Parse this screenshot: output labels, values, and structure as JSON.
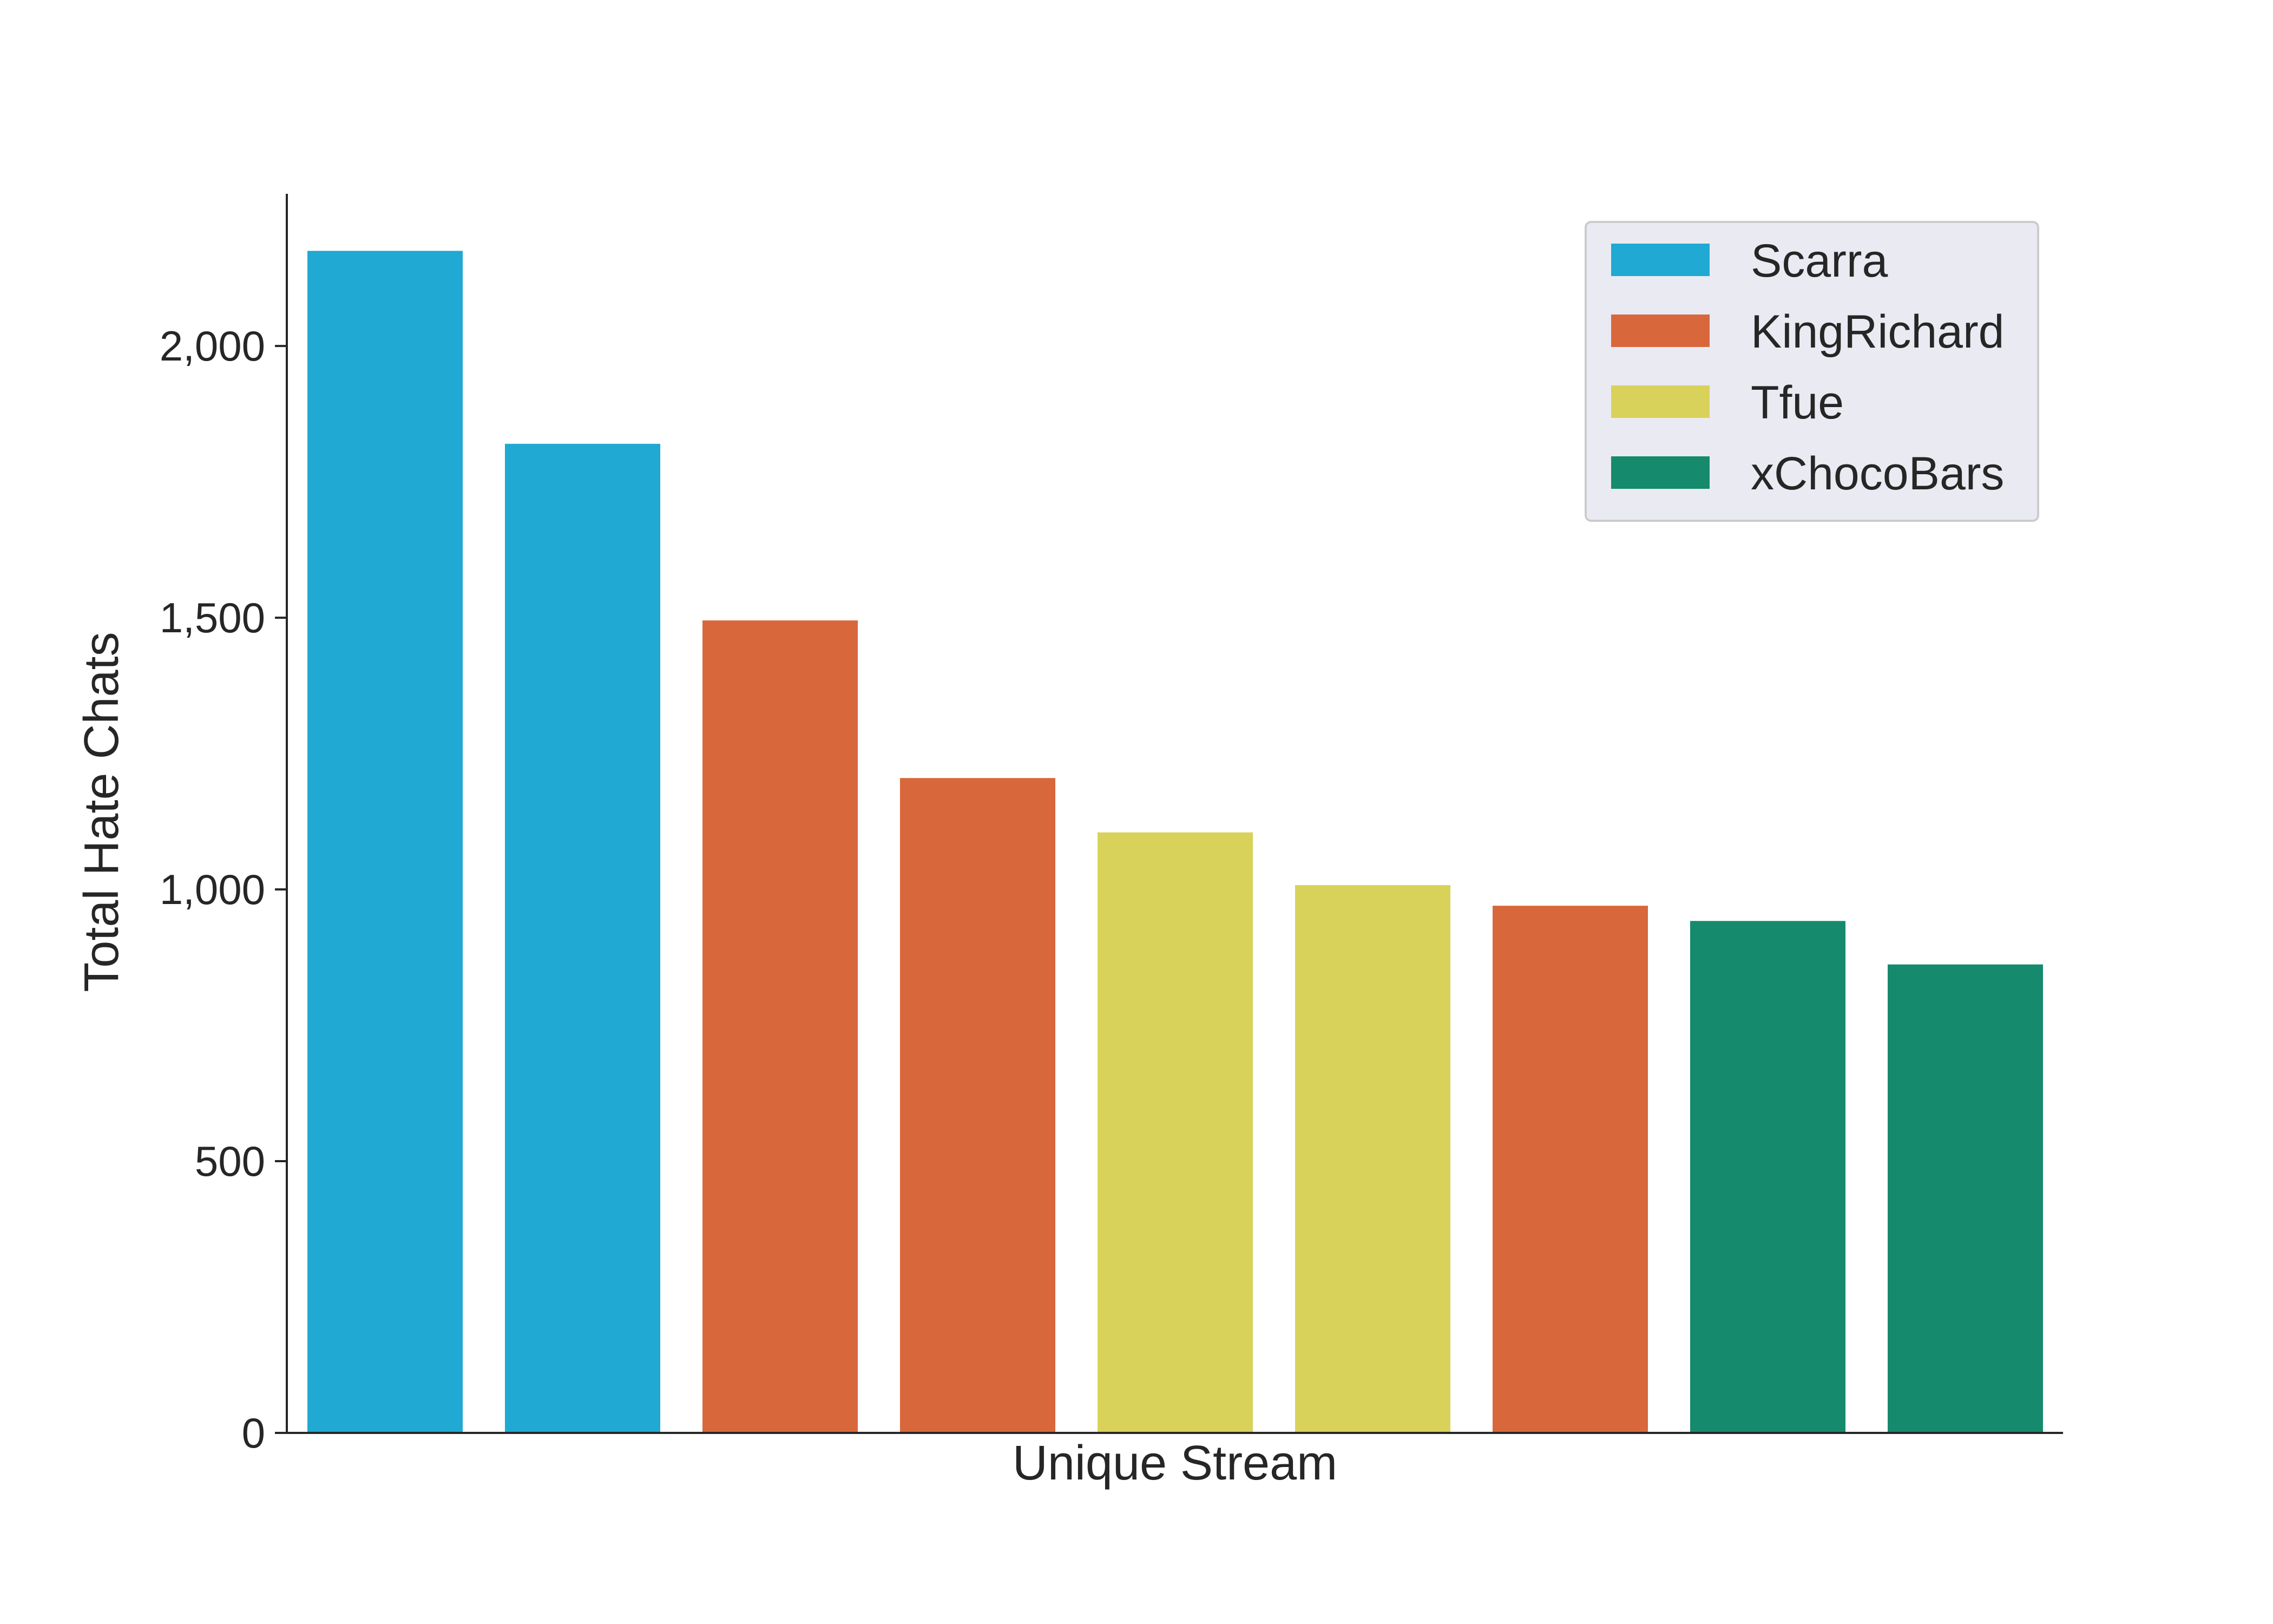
{
  "chart_data": {
    "type": "bar",
    "xlabel": "Unique Stream",
    "ylabel": "Total Hate Chats",
    "ylim": [
      0,
      2280
    ],
    "yticks": [
      0,
      500,
      1000,
      1500,
      2000
    ],
    "ytick_labels": [
      "0",
      "500",
      "1,000",
      "1,500",
      "2,000"
    ],
    "grid": false,
    "legend_position": "top-right",
    "series": [
      {
        "name": "Scarra",
        "color": "#1FA9D3"
      },
      {
        "name": "KingRichard",
        "color": "#D8673C"
      },
      {
        "name": "Tfue",
        "color": "#D9D25A"
      },
      {
        "name": "xChocoBars",
        "color": "#168A6C"
      }
    ],
    "bars": [
      {
        "series": "Scarra",
        "value": 2175
      },
      {
        "series": "Scarra",
        "value": 1820
      },
      {
        "series": "KingRichard",
        "value": 1495
      },
      {
        "series": "KingRichard",
        "value": 1205
      },
      {
        "series": "Tfue",
        "value": 1105
      },
      {
        "series": "Tfue",
        "value": 1008
      },
      {
        "series": "KingRichard",
        "value": 970
      },
      {
        "series": "xChocoBars",
        "value": 942
      },
      {
        "series": "xChocoBars",
        "value": 862
      }
    ]
  }
}
